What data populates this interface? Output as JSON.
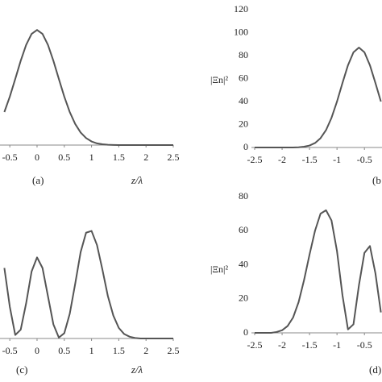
{
  "chart_data": [
    {
      "type": "line",
      "label": "(a)",
      "xlabel": "z/λ",
      "x": [
        -0.6,
        -0.5,
        -0.4,
        -0.3,
        -0.2,
        -0.1,
        0,
        0.1,
        0.2,
        0.3,
        0.4,
        0.5,
        0.6,
        0.7,
        0.8,
        0.9,
        1.0,
        1.1,
        1.2,
        1.3,
        1.4,
        1.5,
        1.6,
        1.7,
        1.8,
        1.9,
        2.0,
        2.1,
        2.2,
        2.3,
        2.4,
        2.5
      ],
      "values": [
        29.3,
        42.9,
        58.6,
        74.7,
        88.8,
        98.5,
        102,
        98.5,
        88.8,
        74.7,
        58.6,
        42.9,
        29.3,
        18.7,
        11.1,
        6.2,
        3.2,
        1.5,
        0.7,
        0.3,
        0.1,
        0,
        0,
        0,
        0,
        0,
        0,
        0,
        0,
        0,
        0,
        0
      ],
      "color": "#555555",
      "xlim": [
        -0.68,
        2.5
      ],
      "xticks": [
        -0.5,
        0,
        0.5,
        1,
        1.5,
        2,
        2.5
      ],
      "ylim": [
        0,
        120
      ]
    },
    {
      "type": "line",
      "label": "(b",
      "ylabel": "|Ξn|²",
      "x": [
        -2.5,
        -2.4,
        -2.3,
        -2.2,
        -2.1,
        -2.0,
        -1.9,
        -1.8,
        -1.7,
        -1.6,
        -1.5,
        -1.4,
        -1.3,
        -1.2,
        -1.1,
        -1.0,
        -0.9,
        -0.8,
        -0.7,
        -0.6,
        -0.5,
        -0.4,
        -0.3,
        -0.2
      ],
      "values": [
        0,
        0,
        0,
        0,
        0,
        0,
        0,
        0,
        0.2,
        0.7,
        1.7,
        3.9,
        8.1,
        15.1,
        25.8,
        40,
        56.2,
        71.6,
        82.9,
        87,
        82.9,
        71.6,
        56.2,
        40
      ],
      "color": "#555555",
      "xlim": [
        -2.5,
        -0.18
      ],
      "xticks": [
        -2.5,
        -2,
        -1.5,
        -1,
        -0.5
      ],
      "ylim": [
        0,
        120
      ],
      "yticks": [
        0,
        20,
        40,
        60,
        80,
        100,
        120
      ]
    },
    {
      "type": "line",
      "label": "(c)",
      "xlabel": "z/λ",
      "x": [
        -0.6,
        -0.5,
        -0.4,
        -0.3,
        -0.2,
        -0.1,
        0,
        0.1,
        0.2,
        0.3,
        0.4,
        0.5,
        0.6,
        0.7,
        0.8,
        0.9,
        1.0,
        1.1,
        1.2,
        1.3,
        1.4,
        1.5,
        1.6,
        1.7,
        1.8,
        1.9,
        2.0,
        2.1,
        2.2,
        2.3,
        2.4,
        2.5
      ],
      "values": [
        40,
        18,
        2,
        5,
        20,
        38,
        46,
        40,
        24,
        8,
        0.5,
        3,
        14,
        31,
        49,
        60,
        61,
        53,
        39,
        24,
        13,
        6,
        2.5,
        1,
        0.3,
        0,
        0,
        0,
        0,
        0,
        0,
        0
      ],
      "color": "#555555",
      "xlim": [
        -0.68,
        2.5
      ],
      "xticks": [
        -0.5,
        0,
        0.5,
        1,
        1.5,
        2,
        2.5
      ],
      "ylim": [
        0,
        80
      ]
    },
    {
      "type": "line",
      "label": "(d)",
      "ylabel": "|Ξn|²",
      "x": [
        -2.5,
        -2.4,
        -2.3,
        -2.2,
        -2.1,
        -2.0,
        -1.9,
        -1.8,
        -1.7,
        -1.6,
        -1.5,
        -1.4,
        -1.3,
        -1.2,
        -1.1,
        -1.0,
        -0.9,
        -0.8,
        -0.7,
        -0.6,
        -0.5,
        -0.4,
        -0.3,
        -0.2
      ],
      "values": [
        0,
        0,
        0,
        0,
        0.5,
        1.5,
        4,
        9,
        18,
        31,
        46,
        60,
        70,
        72,
        66,
        48,
        22,
        2,
        5,
        28,
        47,
        51,
        35,
        12
      ],
      "color": "#555555",
      "xlim": [
        -2.5,
        -0.18
      ],
      "xticks": [
        -2.5,
        -2,
        -1.5,
        -1,
        -0.5
      ],
      "ylim": [
        0,
        80
      ],
      "yticks": [
        0,
        20,
        40,
        60,
        80
      ]
    }
  ]
}
